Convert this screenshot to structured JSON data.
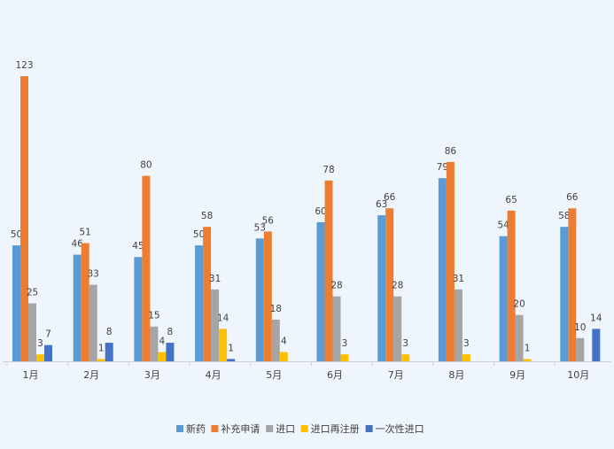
{
  "chart_data": {
    "type": "bar",
    "title": "",
    "xlabel": "",
    "ylabel": "",
    "categories": [
      "1月",
      "2月",
      "3月",
      "4月",
      "5月",
      "6月",
      "7月",
      "8月",
      "9月",
      "10月"
    ],
    "series": [
      {
        "name": "新药",
        "color": "#5b9bd5",
        "values": [
          50,
          46,
          45,
          50,
          53,
          60,
          63,
          79,
          54,
          58
        ]
      },
      {
        "name": "补充申请",
        "color": "#ed7d31",
        "values": [
          123,
          51,
          80,
          58,
          56,
          78,
          66,
          86,
          65,
          66
        ]
      },
      {
        "name": "进口",
        "color": "#a5a5a5",
        "values": [
          25,
          33,
          15,
          31,
          18,
          28,
          28,
          31,
          20,
          10
        ]
      },
      {
        "name": "进口再注册",
        "color": "#ffc000",
        "values": [
          3,
          1,
          4,
          14,
          4,
          3,
          3,
          3,
          1,
          null
        ]
      },
      {
        "name": "一次性进口",
        "color": "#4472c4",
        "values": [
          7,
          8,
          8,
          1,
          null,
          null,
          null,
          null,
          null,
          14
        ]
      }
    ],
    "ylim": [
      0,
      123
    ],
    "grid": false,
    "legend_position": "bottom",
    "data_labels": true
  }
}
